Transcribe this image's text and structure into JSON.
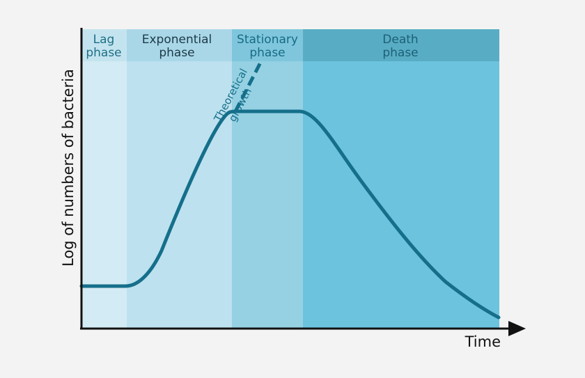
{
  "diagram": {
    "y_axis_label": "Log of numbers of bacteria",
    "x_axis_label": "Time",
    "phases": [
      {
        "line1": "Lag",
        "line2": "phase",
        "body_color": "#d3ebf4",
        "header_color": "#c3e4ef",
        "text_color": "#1f6f86"
      },
      {
        "line1": "Exponential",
        "line2": "phase",
        "body_color": "#bde1ef",
        "header_color": "#a9d7e8",
        "text_color": "#1d3a45"
      },
      {
        "line1": "Stationary",
        "line2": "phase",
        "body_color": "#95d1e3",
        "header_color": "#7fc6dc",
        "text_color": "#176b85"
      },
      {
        "line1": "Death",
        "line2": "phase",
        "body_color": "#6cc3de",
        "header_color": "#58adc4",
        "text_color": "#1d5f78"
      }
    ],
    "annotation": {
      "line1": "Theoretical",
      "line2": "growth"
    },
    "colors": {
      "curve": "#156f8a",
      "axis": "#111111",
      "background": "#f3f3f3"
    }
  }
}
